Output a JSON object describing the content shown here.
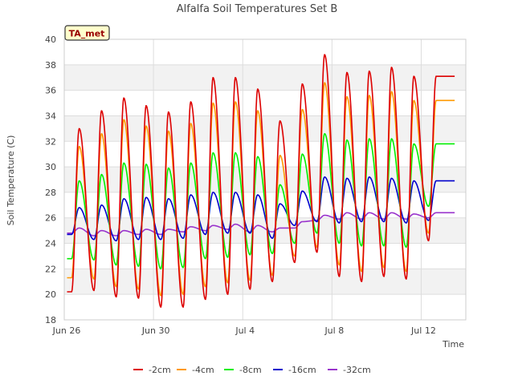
{
  "chart_data": {
    "type": "line",
    "title": "Alfalfa Soil Temperatures Set B",
    "xlabel": "Time",
    "ylabel": "Soil Temperature (C)",
    "ylim": [
      18,
      40
    ],
    "yticks": [
      18,
      20,
      22,
      24,
      26,
      28,
      30,
      32,
      34,
      36,
      38,
      40
    ],
    "xlim": [
      "2016-06-26",
      "2016-07-14"
    ],
    "xticks": [
      {
        "date": "2016-06-26",
        "label": "Jun 26"
      },
      {
        "date": "2016-06-30",
        "label": "Jun 30"
      },
      {
        "date": "2016-07-04",
        "label": "Jul 4"
      },
      {
        "date": "2016-07-08",
        "label": "Jul 8"
      },
      {
        "date": "2016-07-12",
        "label": "Jul 12"
      }
    ],
    "grid": true,
    "legend_position": "bottom",
    "annotation": "TA_met",
    "series": [
      {
        "name": "-2cm",
        "color": "#dd0000",
        "daily_max": [
          33.0,
          34.4,
          35.4,
          34.8,
          34.3,
          35.1,
          37.0,
          37.0,
          36.1,
          33.6,
          36.5,
          38.8,
          37.4,
          37.5,
          37.8,
          37.1,
          37.1
        ],
        "daily_min": [
          20.2,
          20.3,
          19.8,
          19.7,
          19.0,
          19.0,
          19.6,
          20.0,
          20.4,
          21.0,
          22.5,
          23.3,
          21.4,
          21.0,
          21.4,
          21.2,
          24.2
        ]
      },
      {
        "name": "-4cm",
        "color": "#ff9900",
        "daily_max": [
          31.6,
          32.6,
          33.7,
          33.2,
          32.8,
          33.4,
          35.0,
          35.1,
          34.4,
          30.9,
          34.5,
          36.6,
          35.5,
          35.6,
          35.9,
          35.2,
          35.2
        ],
        "daily_min": [
          21.3,
          21.2,
          20.6,
          20.4,
          19.9,
          20.0,
          20.6,
          20.9,
          21.1,
          21.5,
          23.0,
          23.7,
          22.3,
          21.8,
          22.1,
          21.8,
          24.8
        ]
      },
      {
        "name": "-8cm",
        "color": "#00ee00",
        "daily_max": [
          28.9,
          29.4,
          30.3,
          30.2,
          29.9,
          30.3,
          31.1,
          31.1,
          30.8,
          28.6,
          31.0,
          32.6,
          32.1,
          32.2,
          32.2,
          31.8,
          31.8
        ],
        "daily_min": [
          22.8,
          22.7,
          22.3,
          22.2,
          22.0,
          22.1,
          22.8,
          22.9,
          23.1,
          23.2,
          24.0,
          24.8,
          24.0,
          23.8,
          23.8,
          23.7,
          26.9
        ]
      },
      {
        "name": "-16cm",
        "color": "#0000cc",
        "daily_max": [
          26.8,
          27.0,
          27.5,
          27.6,
          27.5,
          27.8,
          28.0,
          28.0,
          27.8,
          27.1,
          28.1,
          29.2,
          29.1,
          29.2,
          29.1,
          28.9,
          28.9
        ],
        "daily_min": [
          24.7,
          24.3,
          24.2,
          24.3,
          24.3,
          24.4,
          24.7,
          24.8,
          24.8,
          24.4,
          25.4,
          25.7,
          25.6,
          25.7,
          25.7,
          25.6,
          25.8
        ]
      },
      {
        "name": "-32cm",
        "color": "#9933cc",
        "daily_max": [
          25.2,
          25.0,
          25.0,
          25.1,
          25.1,
          25.3,
          25.4,
          25.5,
          25.4,
          25.2,
          25.7,
          26.2,
          26.4,
          26.4,
          26.4,
          26.3,
          26.4
        ],
        "daily_min": [
          24.8,
          24.6,
          24.6,
          24.7,
          24.7,
          24.9,
          25.0,
          25.1,
          24.9,
          24.9,
          25.2,
          25.8,
          25.9,
          25.9,
          25.9,
          25.9,
          26.0
        ]
      }
    ]
  }
}
